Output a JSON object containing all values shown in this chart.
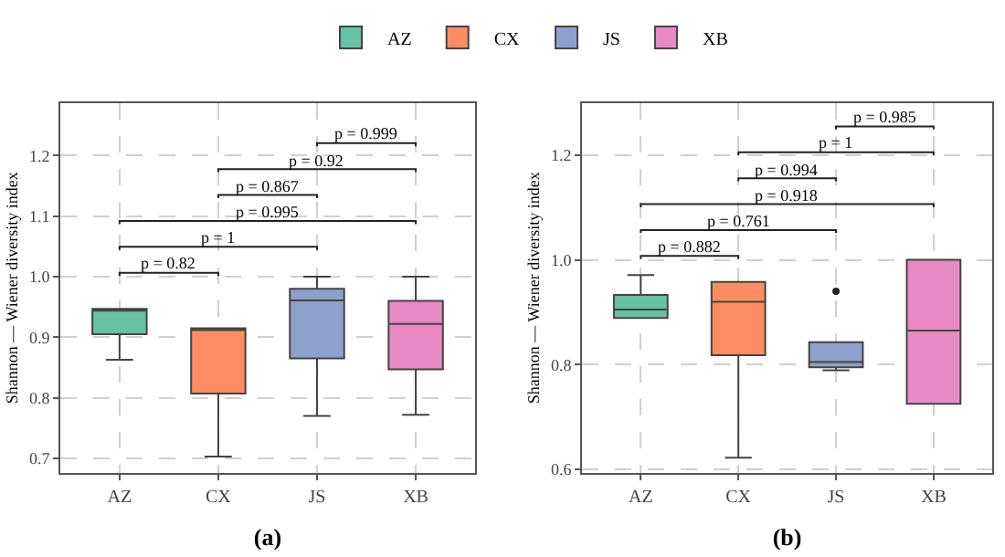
{
  "chart_data": [
    {
      "type": "box",
      "categories": [
        "AZ",
        "CX",
        "JS",
        "XB"
      ],
      "series": [
        {
          "name": "AZ",
          "color": "#66c2a5",
          "boxes": [
            {
              "low": 0.863,
              "q1": 0.905,
              "median": 0.944,
              "q3": 0.947,
              "high": 0.947
            },
            null,
            null,
            null
          ]
        },
        {
          "name": "CX",
          "color": "#fc8d62",
          "boxes": [
            null,
            {
              "low": 0.703,
              "q1": 0.807,
              "median": 0.912,
              "q3": 0.915,
              "high": 0.915
            },
            null,
            null
          ]
        },
        {
          "name": "JS",
          "color": "#8da0cb",
          "boxes": [
            null,
            null,
            {
              "low": 0.77,
              "q1": 0.865,
              "median": 0.961,
              "q3": 0.98,
              "high": 1.0
            },
            null
          ]
        },
        {
          "name": "XB",
          "color": "#e78ac3",
          "boxes": [
            null,
            null,
            null,
            {
              "low": 0.772,
              "q1": 0.847,
              "median": 0.922,
              "q3": 0.96,
              "high": 1.0
            }
          ]
        }
      ],
      "ylabel": "Shannon — Wiener diversity index",
      "xlabel": "(a)",
      "ylim": [
        0.676,
        1.287
      ],
      "yticks": [
        0.7,
        0.8,
        0.9,
        {
          "value": 1.0,
          "label": "1.0"
        },
        1.1,
        1.2
      ],
      "grid": true,
      "legend": "top",
      "annotations": [
        "p = 0.82",
        "p = 1",
        "p = 0.995",
        "p = 0.867",
        "p = 0.92",
        "p = 0.999"
      ]
    },
    {
      "type": "box",
      "categories": [
        "AZ",
        "CX",
        "JS",
        "XB"
      ],
      "series": [
        {
          "color": "#66c2a5",
          "boxes": [
            {
              "low": 0.889,
              "q1": 0.889,
              "median": 0.905,
              "q3": 0.933,
              "high": 0.971
            },
            null,
            null,
            null
          ]
        },
        {
          "color": "#fc8d62",
          "boxes": [
            null,
            {
              "low": 0.622,
              "q1": 0.818,
              "median": 0.92,
              "q3": 0.958,
              "high": 0.958
            },
            null,
            null
          ]
        },
        {
          "color": "#8da0cb",
          "boxes": [
            null,
            null,
            {
              "low": 0.789,
              "q1": 0.795,
              "median": 0.805,
              "q3": 0.843,
              "high": 0.843,
              "outliers": [
                0.94
              ]
            },
            null
          ]
        },
        {
          "color": "#e78ac3",
          "boxes": [
            null,
            null,
            null,
            {
              "low": 0.725,
              "q1": 0.725,
              "median": 0.865,
              "q3": 1.0,
              "high": 1.0
            }
          ]
        }
      ],
      "ylabel": "Shannon — Wiener diversity index",
      "xlabel": "(b)",
      "ylim": [
        0.593,
        1.3
      ],
      "yticks": [
        0.6,
        0.8,
        {
          "value": 1.0,
          "label": "1.0"
        },
        1.2
      ],
      "grid": true,
      "annotations": [
        "p = 0.882",
        "p = 0.761",
        "p = 0.918",
        "p = 0.994",
        "p = 1",
        "p = 0.985"
      ]
    }
  ]
}
